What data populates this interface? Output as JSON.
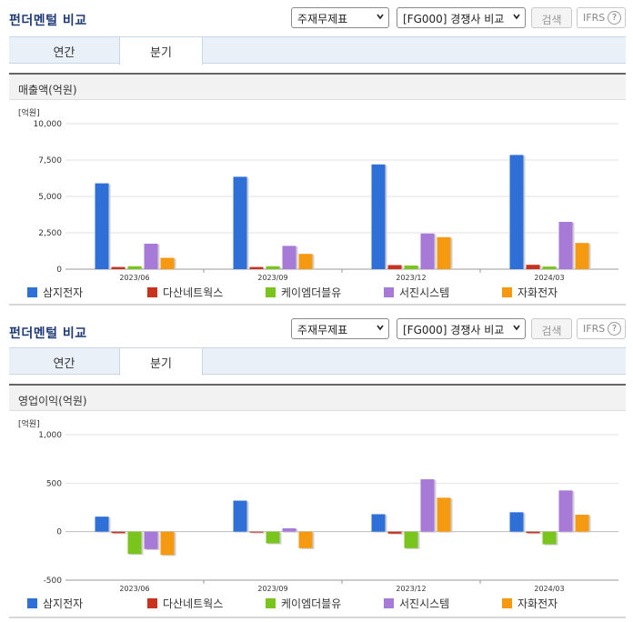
{
  "panels": [
    {
      "title": "펀더멘털 비교",
      "select1": "주재무제표",
      "select2": "[FG000] 경쟁사 비교",
      "search_button": "검색",
      "ifrs_label": "IFRS",
      "help_icon_text": "?",
      "tabs": [
        "연간",
        "분기"
      ],
      "active_tab": 1,
      "section_title": "매출액(억원)",
      "unit_label": "[억원]"
    },
    {
      "title": "펀더멘털 비교",
      "select1": "주재무제표",
      "select2": "[FG000] 경쟁사 비교",
      "search_button": "검색",
      "ifrs_label": "IFRS",
      "help_icon_text": "?",
      "tabs": [
        "연간",
        "분기"
      ],
      "active_tab": 1,
      "section_title": "영업이익(억원)",
      "unit_label": "[억원]"
    }
  ],
  "colors": {
    "series": [
      "#2f6fd8",
      "#c8321e",
      "#7ac41e",
      "#a87ad8",
      "#f59a10"
    ],
    "title": "#1f3a75"
  },
  "chart_data": [
    {
      "type": "bar",
      "title": "매출액(억원)",
      "categories": [
        "2023/06",
        "2023/09",
        "2023/12",
        "2024/03"
      ],
      "ylim": [
        0,
        10000
      ],
      "yticks": [
        0,
        2500,
        5000,
        7500,
        10000
      ],
      "ytick_labels": [
        "0",
        "2,500",
        "5,000",
        "7,500",
        "10,000"
      ],
      "grid": true,
      "legend_position": "bottom",
      "series": [
        {
          "name": "삼지전자",
          "values": [
            5900,
            6350,
            7200,
            7850
          ]
        },
        {
          "name": "다산네트웍스",
          "values": [
            150,
            150,
            280,
            300
          ]
        },
        {
          "name": "케이엠더블유",
          "values": [
            200,
            200,
            250,
            180
          ]
        },
        {
          "name": "서진시스템",
          "values": [
            1750,
            1600,
            2450,
            3250
          ]
        },
        {
          "name": "자화전자",
          "values": [
            780,
            1050,
            2200,
            1800
          ]
        }
      ]
    },
    {
      "type": "bar",
      "title": "영업이익(억원)",
      "categories": [
        "2023/06",
        "2023/09",
        "2023/12",
        "2024/03"
      ],
      "ylim": [
        -500,
        1000
      ],
      "yticks": [
        -500,
        0,
        500,
        1000
      ],
      "ytick_labels": [
        "-500",
        "0",
        "500",
        "1,000"
      ],
      "grid": true,
      "legend_position": "bottom",
      "series": [
        {
          "name": "삼지전자",
          "values": [
            155,
            320,
            180,
            200
          ]
        },
        {
          "name": "다산네트웍스",
          "values": [
            -15,
            0,
            -20,
            -15
          ]
        },
        {
          "name": "케이엠더블유",
          "values": [
            -230,
            -120,
            -170,
            -130
          ]
        },
        {
          "name": "서진시스템",
          "values": [
            -180,
            35,
            540,
            425
          ]
        },
        {
          "name": "자화전자",
          "values": [
            -240,
            -170,
            350,
            175
          ]
        }
      ]
    }
  ]
}
